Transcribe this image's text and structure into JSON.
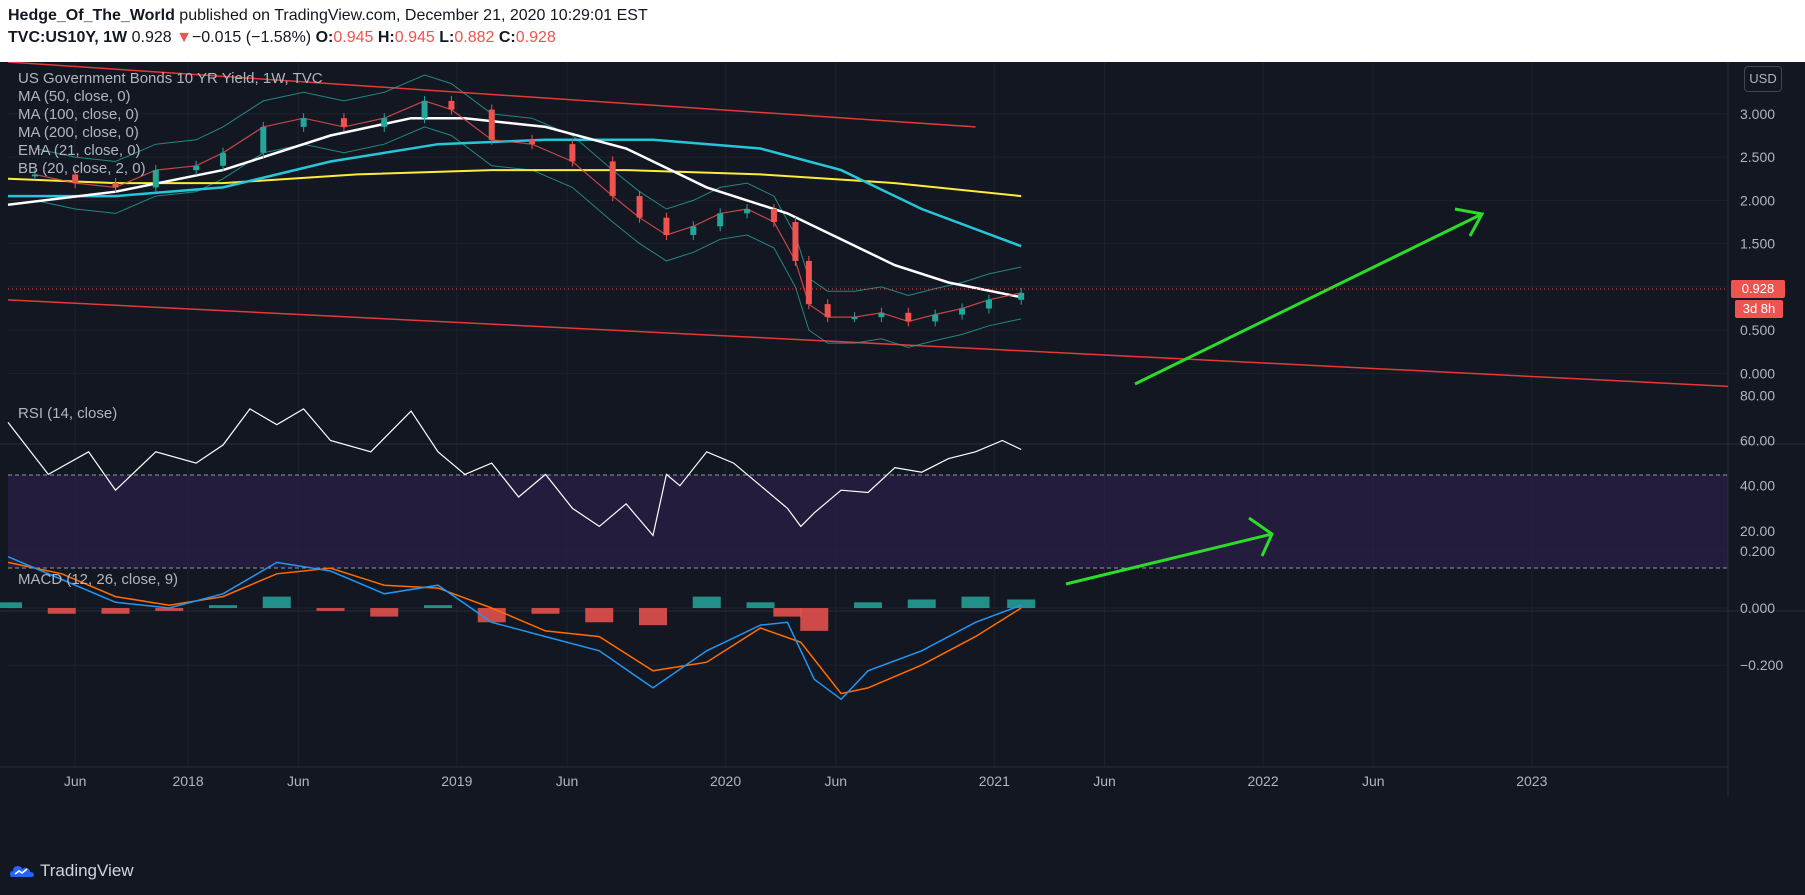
{
  "header": {
    "author": "Hedge_Of_The_World",
    "published": " published on TradingView.com, December 21, 2020 10:29:01 EST",
    "symbol": "TVC:US10Y, 1W",
    "last": "0.928",
    "change_arrow": "▼",
    "change": "−0.015 (−1.58%)",
    "o_label": "O:",
    "o_value": "0.945",
    "h_label": "H:",
    "h_value": "0.945",
    "l_label": "L:",
    "l_value": "0.882",
    "c_label": "C:",
    "c_value": "0.928"
  },
  "legend": {
    "title": "US Government Bonds 10 YR Yield, 1W, TVC",
    "ma50": "MA (50, close, 0)",
    "ma100": "MA (100, close, 0)",
    "ma200": "MA (200, close, 0)",
    "ema21": "EMA (21, close, 0)",
    "bb": "BB (20, close, 2, 0)",
    "rsi": "RSI (14, close)",
    "macd": "MACD (12, 26, close, 9)"
  },
  "price_labels": {
    "last": "0.928",
    "countdown": "3d 8h",
    "currency": "USD"
  },
  "footer": {
    "brand": "TradingView"
  },
  "colors": {
    "background": "#131722",
    "grid": "#1e222d",
    "up": "#26a69a",
    "down": "#ef5350",
    "ma50": "#ffffff",
    "ma100": "#26c6da",
    "ma200": "#ffeb3b",
    "ema21": "#ef5350",
    "bb": "#26a69a",
    "trend": "#e53935",
    "arrow": "#2bdc28",
    "rsi": "#ffffff",
    "rsi_band": "#2a1f45",
    "macd": "#2196f3",
    "signal": "#ff6d00"
  },
  "chart_data": [
    {
      "type": "line",
      "panel": "price",
      "x_ticks": [
        "Jun",
        "2018",
        "Jun",
        "2019",
        "Jun",
        "2020",
        "Jun",
        "2021",
        "Jun",
        "2022",
        "Jun",
        "2023"
      ],
      "y_ticks": [
        "3.000",
        "2.500",
        "2.000",
        "1.500",
        "1.000",
        "0.500",
        "0.000"
      ],
      "ylim": [
        -0.1,
        3.6
      ],
      "series": [
        {
          "name": "US Government Bonds 10 YR Yield",
          "style": "candles",
          "x": [
            2017.3,
            2017.45,
            2017.6,
            2017.75,
            2017.9,
            2018.0,
            2018.15,
            2018.3,
            2018.45,
            2018.6,
            2018.75,
            2018.85,
            2019.0,
            2019.15,
            2019.3,
            2019.45,
            2019.55,
            2019.65,
            2019.75,
            2019.85,
            2019.95,
            2020.05,
            2020.13,
            2020.18,
            2020.25,
            2020.35,
            2020.45,
            2020.55,
            2020.65,
            2020.75,
            2020.85,
            2020.97
          ],
          "values": [
            2.3,
            2.2,
            2.15,
            2.35,
            2.4,
            2.55,
            2.85,
            2.95,
            2.85,
            2.95,
            3.15,
            3.05,
            2.7,
            2.65,
            2.45,
            2.05,
            1.8,
            1.6,
            1.7,
            1.85,
            1.9,
            1.75,
            1.3,
            0.8,
            0.65,
            0.65,
            0.7,
            0.6,
            0.68,
            0.75,
            0.85,
            0.93
          ]
        },
        {
          "name": "MA (50, close, 0)",
          "x": [
            2017.2,
            2017.6,
            2018.0,
            2018.4,
            2018.7,
            2018.9,
            2019.2,
            2019.5,
            2019.8,
            2020.1,
            2020.3,
            2020.5,
            2020.7,
            2020.97
          ],
          "values": [
            1.95,
            2.1,
            2.35,
            2.75,
            2.95,
            2.95,
            2.85,
            2.6,
            2.15,
            1.85,
            1.55,
            1.25,
            1.05,
            0.88
          ]
        },
        {
          "name": "MA (100, close, 0)",
          "x": [
            2017.2,
            2017.6,
            2018.0,
            2018.4,
            2018.8,
            2019.2,
            2019.6,
            2020.0,
            2020.3,
            2020.6,
            2020.97
          ],
          "values": [
            2.05,
            2.05,
            2.15,
            2.45,
            2.65,
            2.7,
            2.7,
            2.6,
            2.35,
            1.9,
            1.47
          ]
        },
        {
          "name": "MA (200, close, 0)",
          "x": [
            2017.2,
            2017.6,
            2018.0,
            2018.5,
            2019.0,
            2019.5,
            2020.0,
            2020.5,
            2020.97
          ],
          "values": [
            2.25,
            2.2,
            2.2,
            2.3,
            2.35,
            2.35,
            2.3,
            2.2,
            2.05
          ]
        }
      ],
      "trendlines": [
        {
          "name": "upper-channel",
          "x": [
            2017.2,
            2020.8
          ],
          "values": [
            3.6,
            2.85
          ]
        },
        {
          "name": "lower-channel",
          "x": [
            2017.2,
            2023.6
          ],
          "values": [
            0.85,
            -0.15
          ]
        }
      ],
      "last_value": 0.928
    },
    {
      "type": "line",
      "panel": "rsi",
      "y_ticks": [
        "80.00",
        "60.00",
        "40.00",
        "20.00"
      ],
      "ylim": [
        12,
        85
      ],
      "bands": [
        70,
        30
      ],
      "series": [
        {
          "name": "RSI (14, close)",
          "x": [
            2017.2,
            2017.35,
            2017.5,
            2017.6,
            2017.75,
            2017.9,
            2018.0,
            2018.1,
            2018.2,
            2018.3,
            2018.4,
            2018.55,
            2018.7,
            2018.8,
            2018.9,
            2019.0,
            2019.1,
            2019.2,
            2019.3,
            2019.4,
            2019.5,
            2019.6,
            2019.65,
            2019.7,
            2019.8,
            2019.9,
            2020.0,
            2020.1,
            2020.15,
            2020.2,
            2020.3,
            2020.4,
            2020.5,
            2020.6,
            2020.7,
            2020.8,
            2020.9,
            2020.97
          ],
          "values": [
            68,
            45,
            55,
            38,
            55,
            50,
            58,
            74,
            67,
            74,
            60,
            55,
            73,
            55,
            45,
            50,
            35,
            45,
            30,
            22,
            32,
            18,
            45,
            40,
            55,
            50,
            40,
            30,
            22,
            28,
            38,
            37,
            48,
            46,
            52,
            55,
            60,
            56
          ]
        }
      ]
    },
    {
      "type": "bar",
      "panel": "macd",
      "y_ticks": [
        "0.200",
        "0.000",
        "−0.200"
      ],
      "ylim": [
        -0.34,
        0.2
      ],
      "series": [
        {
          "name": "MACD",
          "x": [
            2017.2,
            2017.4,
            2017.6,
            2017.8,
            2018.0,
            2018.2,
            2018.4,
            2018.6,
            2018.8,
            2019.0,
            2019.2,
            2019.4,
            2019.6,
            2019.8,
            2020.0,
            2020.1,
            2020.2,
            2020.3,
            2020.4,
            2020.6,
            2020.8,
            2020.97
          ],
          "values": [
            0.18,
            0.1,
            0.02,
            0.0,
            0.05,
            0.16,
            0.13,
            0.05,
            0.08,
            -0.05,
            -0.1,
            -0.15,
            -0.28,
            -0.15,
            -0.06,
            -0.05,
            -0.25,
            -0.32,
            -0.22,
            -0.15,
            -0.05,
            0.01
          ]
        },
        {
          "name": "Signal",
          "x": [
            2017.2,
            2017.4,
            2017.6,
            2017.8,
            2018.0,
            2018.2,
            2018.4,
            2018.6,
            2018.8,
            2019.0,
            2019.2,
            2019.4,
            2019.6,
            2019.8,
            2020.0,
            2020.15,
            2020.3,
            2020.4,
            2020.6,
            2020.8,
            2020.97
          ],
          "values": [
            0.16,
            0.12,
            0.04,
            0.01,
            0.04,
            0.12,
            0.14,
            0.08,
            0.07,
            0.0,
            -0.08,
            -0.1,
            -0.22,
            -0.19,
            -0.07,
            -0.12,
            -0.3,
            -0.28,
            -0.2,
            -0.1,
            0.0
          ]
        },
        {
          "name": "Histogram",
          "x": [
            2017.2,
            2017.4,
            2017.6,
            2017.8,
            2018.0,
            2018.2,
            2018.4,
            2018.6,
            2018.8,
            2019.0,
            2019.2,
            2019.4,
            2019.6,
            2019.8,
            2020.0,
            2020.1,
            2020.2,
            2020.4,
            2020.6,
            2020.8,
            2020.97
          ],
          "values": [
            0.02,
            -0.02,
            -0.02,
            -0.01,
            0.01,
            0.04,
            -0.01,
            -0.03,
            0.01,
            -0.05,
            -0.02,
            -0.05,
            -0.06,
            0.04,
            0.02,
            -0.03,
            -0.08,
            0.02,
            0.03,
            0.04,
            0.03
          ]
        }
      ]
    }
  ]
}
